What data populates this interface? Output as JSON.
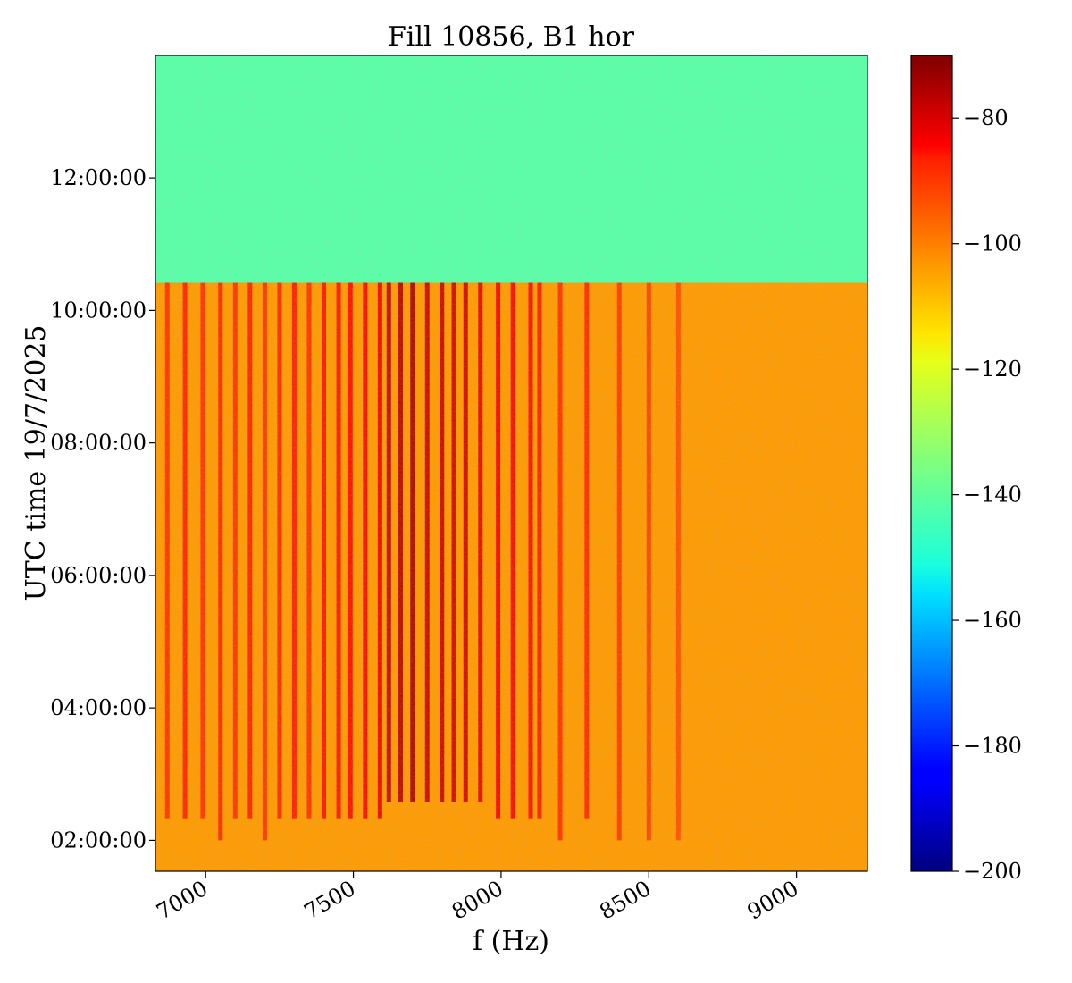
{
  "chart_data": {
    "type": "heatmap",
    "title": "Fill 10856, B1 hor",
    "xlabel": "f (Hz)",
    "ylabel": "UTC time 19/7/2025",
    "xlim": [
      6830,
      9240
    ],
    "ylim": [
      "01:32:00",
      "13:51:00"
    ],
    "x_ticks": [
      {
        "value": 7000,
        "label": "7000"
      },
      {
        "value": 7500,
        "label": "7500"
      },
      {
        "value": 8000,
        "label": "8000"
      },
      {
        "value": 8500,
        "label": "8500"
      },
      {
        "value": 9000,
        "label": "9000"
      }
    ],
    "y_ticks": [
      {
        "value": "02:00:00",
        "label": "02:00:00"
      },
      {
        "value": "04:00:00",
        "label": "04:00:00"
      },
      {
        "value": "06:00:00",
        "label": "06:00:00"
      },
      {
        "value": "08:00:00",
        "label": "08:00:00"
      },
      {
        "value": "10:00:00",
        "label": "10:00:00"
      },
      {
        "value": "12:00:00",
        "label": "12:00:00"
      }
    ],
    "colorbar": {
      "colormap": "jet",
      "range": [
        -200,
        -70
      ],
      "ticks": [
        {
          "value": -80,
          "label": "−80"
        },
        {
          "value": -100,
          "label": "−100"
        },
        {
          "value": -120,
          "label": "−120"
        },
        {
          "value": -140,
          "label": "−140"
        },
        {
          "value": -160,
          "label": "−160"
        },
        {
          "value": -180,
          "label": "−180"
        },
        {
          "value": -200,
          "label": "−200"
        }
      ]
    },
    "regions": [
      {
        "time_start": "10:25:00",
        "time_end": "13:51:00",
        "f_start": 6830,
        "f_end": 9240,
        "level": -140
      },
      {
        "time_start": "01:32:00",
        "time_end": "10:25:00",
        "f_start": 6830,
        "f_end": 9240,
        "level": -106
      }
    ],
    "lines": [
      {
        "f": 6870,
        "level": -92,
        "time_start": "02:20:00",
        "time_end": "10:25:00"
      },
      {
        "f": 6930,
        "level": -90,
        "time_start": "02:20:00",
        "time_end": "10:25:00"
      },
      {
        "f": 6990,
        "level": -92,
        "time_start": "02:20:00",
        "time_end": "10:25:00"
      },
      {
        "f": 7050,
        "level": -91,
        "time_start": "02:00:00",
        "time_end": "10:25:00"
      },
      {
        "f": 7100,
        "level": -92,
        "time_start": "02:20:00",
        "time_end": "10:25:00"
      },
      {
        "f": 7150,
        "level": -90,
        "time_start": "02:20:00",
        "time_end": "10:25:00"
      },
      {
        "f": 7200,
        "level": -92,
        "time_start": "02:00:00",
        "time_end": "10:25:00"
      },
      {
        "f": 7250,
        "level": -91,
        "time_start": "02:20:00",
        "time_end": "10:25:00"
      },
      {
        "f": 7300,
        "level": -89,
        "time_start": "02:20:00",
        "time_end": "10:25:00"
      },
      {
        "f": 7350,
        "level": -92,
        "time_start": "02:20:00",
        "time_end": "10:25:00"
      },
      {
        "f": 7400,
        "level": -88,
        "time_start": "02:20:00",
        "time_end": "10:25:00"
      },
      {
        "f": 7450,
        "level": -88,
        "time_start": "02:20:00",
        "time_end": "10:25:00"
      },
      {
        "f": 7490,
        "level": -87,
        "time_start": "02:20:00",
        "time_end": "10:25:00"
      },
      {
        "f": 7540,
        "level": -86,
        "time_start": "02:20:00",
        "time_end": "10:25:00"
      },
      {
        "f": 7590,
        "level": -84,
        "time_start": "02:20:00",
        "time_end": "10:25:00"
      },
      {
        "f": 7620,
        "level": -78,
        "time_start": "02:35:00",
        "time_end": "10:25:00"
      },
      {
        "f": 7660,
        "level": -77,
        "time_start": "02:35:00",
        "time_end": "10:25:00"
      },
      {
        "f": 7700,
        "level": -75,
        "time_start": "02:35:00",
        "time_end": "10:25:00"
      },
      {
        "f": 7750,
        "level": -79,
        "time_start": "02:35:00",
        "time_end": "10:25:00"
      },
      {
        "f": 7800,
        "level": -79,
        "time_start": "02:35:00",
        "time_end": "10:25:00"
      },
      {
        "f": 7840,
        "level": -80,
        "time_start": "02:35:00",
        "time_end": "10:25:00"
      },
      {
        "f": 7880,
        "level": -80,
        "time_start": "02:35:00",
        "time_end": "10:25:00"
      },
      {
        "f": 7930,
        "level": -83,
        "time_start": "02:35:00",
        "time_end": "10:25:00"
      },
      {
        "f": 7990,
        "level": -85,
        "time_start": "02:20:00",
        "time_end": "10:25:00"
      },
      {
        "f": 8040,
        "level": -86,
        "time_start": "02:20:00",
        "time_end": "10:25:00"
      },
      {
        "f": 8100,
        "level": -87,
        "time_start": "02:20:00",
        "time_end": "10:25:00"
      },
      {
        "f": 8130,
        "level": -89,
        "time_start": "02:20:00",
        "time_end": "10:25:00"
      },
      {
        "f": 8200,
        "level": -92,
        "time_start": "02:00:00",
        "time_end": "10:25:00"
      },
      {
        "f": 8290,
        "level": -91,
        "time_start": "02:20:00",
        "time_end": "10:25:00"
      },
      {
        "f": 8400,
        "level": -93,
        "time_start": "02:00:00",
        "time_end": "10:25:00"
      },
      {
        "f": 8500,
        "level": -94,
        "time_start": "02:00:00",
        "time_end": "10:25:00"
      },
      {
        "f": 8600,
        "level": -96,
        "time_start": "02:00:00",
        "time_end": "10:25:00"
      }
    ]
  }
}
